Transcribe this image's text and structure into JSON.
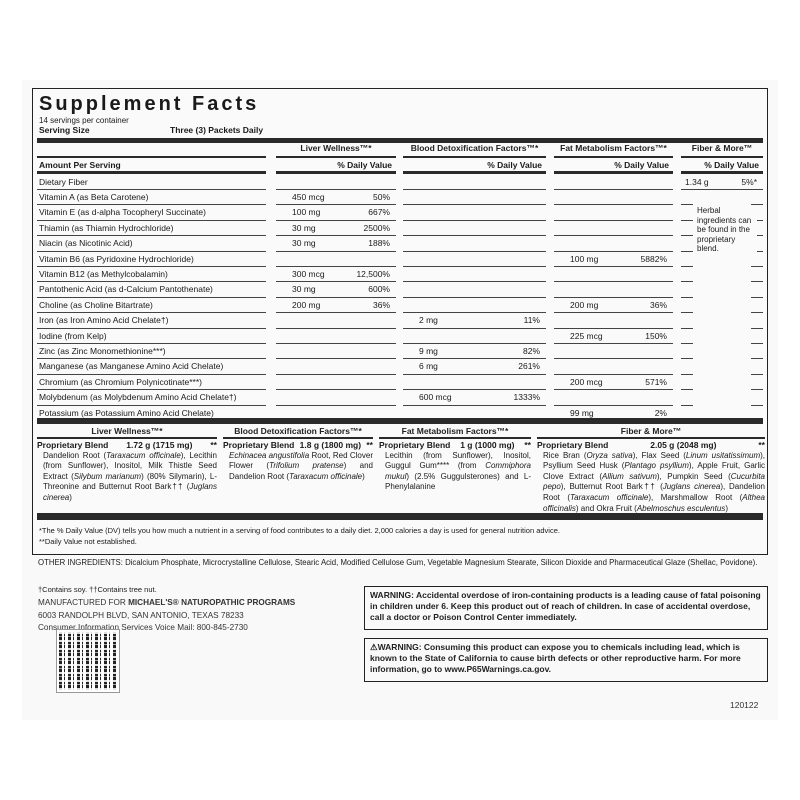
{
  "title": "Supplement Facts",
  "servings": "14 servings per container",
  "serving_size_label": "Serving Size",
  "serving_size_value": "Three (3) Packets Daily",
  "amount_per_serving": "Amount Per Serving",
  "dv_header": "% Daily Value",
  "columns": [
    "Liver Wellness™*",
    "Blood Detoxification Factors™*",
    "Fat Metabolism Factors™*",
    "Fiber & More™"
  ],
  "rows": [
    {
      "name": "Dietary Fiber",
      "v": [
        null,
        null,
        null,
        [
          "1.34 g",
          "5%*"
        ]
      ]
    },
    {
      "name": "Vitamin A (as Beta Carotene)",
      "v": [
        [
          "450 mcg",
          "50%"
        ],
        null,
        null,
        null
      ]
    },
    {
      "name": "Vitamin E (as d-alpha Tocopheryl Succinate)",
      "v": [
        [
          "100 mg",
          "667%"
        ],
        null,
        null,
        null
      ]
    },
    {
      "name": "Thiamin (as Thiamin Hydrochloride)",
      "v": [
        [
          "30 mg",
          "2500%"
        ],
        null,
        null,
        null
      ]
    },
    {
      "name": "Niacin (as Nicotinic Acid)",
      "v": [
        [
          "30 mg",
          "188%"
        ],
        null,
        null,
        null
      ]
    },
    {
      "name": "Vitamin B6 (as Pyridoxine Hydrochloride)",
      "v": [
        null,
        null,
        [
          "100 mg",
          "5882%"
        ],
        null
      ]
    },
    {
      "name": "Vitamin B12 (as Methylcobalamin)",
      "v": [
        [
          "300 mcg",
          "12,500%"
        ],
        null,
        null,
        null
      ]
    },
    {
      "name": "Pantothenic Acid (as d-Calcium Pantothenate)",
      "v": [
        [
          "30 mg",
          "600%"
        ],
        null,
        null,
        null
      ]
    },
    {
      "name": "Choline (as Choline Bitartrate)",
      "v": [
        [
          "200 mg",
          "36%"
        ],
        null,
        [
          "200 mg",
          "36%"
        ],
        null
      ]
    },
    {
      "name": "Iron (as Iron Amino Acid Chelate†)",
      "v": [
        null,
        [
          "2 mg",
          "11%"
        ],
        null,
        null
      ]
    },
    {
      "name": "Iodine (from Kelp)",
      "v": [
        null,
        null,
        [
          "225 mcg",
          "150%"
        ],
        null
      ]
    },
    {
      "name": "Zinc (as Zinc Monomethionine***)",
      "v": [
        null,
        [
          "9 mg",
          "82%"
        ],
        null,
        null
      ]
    },
    {
      "name": "Manganese (as Manganese Amino Acid Chelate)",
      "v": [
        null,
        [
          "6 mg",
          "261%"
        ],
        null,
        null
      ]
    },
    {
      "name": "Chromium (as Chromium Polynicotinate***)",
      "v": [
        null,
        null,
        [
          "200 mcg",
          "571%"
        ],
        null
      ]
    },
    {
      "name": "Molybdenum (as Molybdenum Amino Acid Chelate†)",
      "v": [
        null,
        [
          "600 mcg",
          "1333%"
        ],
        null,
        null
      ]
    },
    {
      "name": "Potassium (as Potassium Amino Acid Chelate)",
      "v": [
        null,
        null,
        [
          "99 mg",
          "2%"
        ],
        null
      ]
    }
  ],
  "herbal_note": "Herbal ingredients can be found in the proprietary blend.",
  "blends": [
    {
      "header": "Liver Wellness™*",
      "label": "Proprietary Blend",
      "amount": "1.72 g (1715 mg)",
      "mark": "**",
      "text": [
        [
          "Dandelion Root (",
          0
        ],
        [
          "Taraxacum officinale",
          1
        ],
        [
          "), Lecithin (from Sunflower), Inositol, Milk Thistle Seed Extract (",
          0
        ],
        [
          "Silybum marianum",
          1
        ],
        [
          ") (80% Silymarin), L-Threonine and Butternut Root Bark†† (",
          0
        ],
        [
          "Juglans cinerea",
          1
        ],
        [
          ")",
          0
        ]
      ]
    },
    {
      "header": "Blood Detoxification Factors™*",
      "label": "Proprietary Blend",
      "amount": "1.8 g (1800 mg)",
      "mark": "**",
      "text": [
        [
          "Echinacea angustifolia",
          1
        ],
        [
          " Root, Red Clover Flower (",
          0
        ],
        [
          "Trifolium pratense",
          1
        ],
        [
          ") and Dandelion Root (",
          0
        ],
        [
          "Taraxacum officinale",
          1
        ],
        [
          ")",
          0
        ]
      ]
    },
    {
      "header": "Fat Metabolism Factors™*",
      "label": "Proprietary Blend",
      "amount": "1 g (1000 mg)",
      "mark": "**",
      "text": [
        [
          "Lecithin (from Sunflower), Inositol, Guggul Gum**** (from ",
          0
        ],
        [
          "Commiphora mukul",
          1
        ],
        [
          ") (2.5% Guggulsterones) and L-Phenylalanine",
          0
        ]
      ]
    },
    {
      "header": "Fiber & More™",
      "label": "Proprietary Blend",
      "amount": "2.05 g (2048 mg)",
      "mark": "**",
      "text": [
        [
          "Rice Bran (",
          0
        ],
        [
          "Oryza sativa",
          1
        ],
        [
          "), Flax Seed (",
          0
        ],
        [
          "Linum usitatissimum",
          1
        ],
        [
          "), Psyllium Seed Husk (",
          0
        ],
        [
          "Plantago psyllium",
          1
        ],
        [
          "), Apple Fruit, Garlic Clove Extract (",
          0
        ],
        [
          "Allium sativum",
          1
        ],
        [
          "), Pumpkin Seed (",
          0
        ],
        [
          "Cucurbita pepo",
          1
        ],
        [
          "), Butternut Root Bark†† (",
          0
        ],
        [
          "Juglans cinerea",
          1
        ],
        [
          "), Dandelion Root (",
          0
        ],
        [
          "Taraxacum officinale",
          1
        ],
        [
          "), Marshmallow Root (",
          0
        ],
        [
          "Althea officinalis",
          1
        ],
        [
          ") and Okra Fruit (",
          0
        ],
        [
          "Abelmoschus esculentus",
          1
        ],
        [
          ")",
          0
        ]
      ]
    }
  ],
  "footnote1": "*The % Daily Value (DV) tells you how much a nutrient in a serving of food contributes to a daily diet. 2,000 calories a day is used for general nutrition advice.",
  "footnote2": "**Daily Value not established.",
  "other_ingredients": "OTHER INGREDIENTS: Dicalcium Phosphate, Microcrystalline Cellulose, Stearic Acid, Modified Cellulose Gum, Vegetable Magnesium Stearate, Silicon Dioxide and Pharmaceutical Glaze (Shellac, Povidone).",
  "allergens": "†Contains soy.  ††Contains tree nut.",
  "manufacturer": {
    "prefix": "MANUFACTURED FOR ",
    "name": "MICHAEL'S® NATUROPATHIC PROGRAMS",
    "address": "6003 RANDOLPH BLVD, SAN ANTONIO, TEXAS 78233",
    "phone": "Consumer Information Services Voice Mail: 800-845-2730"
  },
  "warning_iron": "WARNING: Accidental overdose of iron-containing products is a leading cause of fatal poisoning in children under 6. Keep this product out of reach of children. In case of accidental overdose, call a doctor or Poison Control Center immediately.",
  "warning_p65": "⚠WARNING: Consuming this product can expose you to chemicals including lead, which is known to the State of California to cause birth defects or other reproductive harm. For more information, go to www.P65Warnings.ca.gov.",
  "code": "120122"
}
